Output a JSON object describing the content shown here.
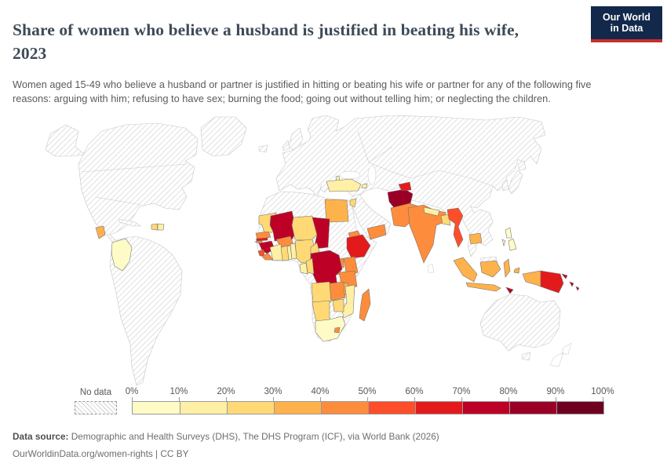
{
  "header": {
    "title": "Share of women who believe a husband is justified in beating his wife, 2023",
    "subtitle": "Women aged 15-49 who believe a husband or partner is justified in hitting or beating his wife or partner for any of the following five reasons: arguing with him; refusing to have sex; burning the food; going out without telling him; or neglecting the children.",
    "logo": {
      "line1": "Our World",
      "line2": "in Data",
      "bg_color": "#12294B",
      "accent_color": "#C4302B",
      "text_color": "#FFFFFF"
    }
  },
  "legend": {
    "no_data_label": "No data",
    "tick_labels": [
      "0%",
      "10%",
      "20%",
      "30%",
      "40%",
      "50%",
      "60%",
      "70%",
      "80%",
      "90%",
      "100%"
    ]
  },
  "footer": {
    "source_label": "Data source:",
    "source_text": " Demographic and Health Surveys (DHS), The DHS Program (ICF), via World Bank (2026)",
    "link_line": "OurWorldinData.org/women-rights | CC BY"
  },
  "chart_data": {
    "type": "choropleth",
    "title": "Share of women who believe a husband is justified in beating his wife, 2023",
    "unit": "%",
    "legend_position": "bottom",
    "bins": [
      {
        "range": "0-10%",
        "color": "#FFFBC7"
      },
      {
        "range": "10-20%",
        "color": "#FFF0A5"
      },
      {
        "range": "20-30%",
        "color": "#FED976"
      },
      {
        "range": "30-40%",
        "color": "#FEB24C"
      },
      {
        "range": "40-50%",
        "color": "#FD8D3C"
      },
      {
        "range": "50-60%",
        "color": "#FC4E2A"
      },
      {
        "range": "60-70%",
        "color": "#E31A1C"
      },
      {
        "range": "70-80%",
        "color": "#BD0026"
      },
      {
        "range": "80-90%",
        "color": "#9A0026"
      },
      {
        "range": "90-100%",
        "color": "#6E0020"
      }
    ],
    "no_data_style": "gray diagonal hatching",
    "no_data_regions": [
      "United States",
      "Canada",
      "Greenland",
      "Mexico",
      "Brazil",
      "Argentina",
      "Europe",
      "Russia",
      "China",
      "Kazakhstan",
      "Mongolia",
      "Saudi Arabia",
      "Iran",
      "Thailand",
      "Vietnam",
      "Japan",
      "Australia",
      "Morocco",
      "Algeria",
      "Libya",
      "Sudan",
      "Somalia",
      "Central African Republic",
      "Botswana",
      "Cuba"
    ],
    "countries": {
      "colombia": {
        "name": "Colombia",
        "range": "0-10%",
        "color": "#FFFBC7"
      },
      "guatemala": {
        "name": "Guatemala",
        "range": "30-40%",
        "color": "#FEB24C"
      },
      "haiti": {
        "name": "Haiti",
        "range": "20-30%",
        "color": "#FED976"
      },
      "dominican-republic": {
        "name": "Dominican Republic",
        "range": "10-20%",
        "color": "#FFF0A5"
      },
      "albania": {
        "name": "Albania",
        "range": "10-20%",
        "color": "#FFF0A5"
      },
      "turkey": {
        "name": "Turkey",
        "range": "10-20%",
        "color": "#FFF0A5"
      },
      "armenia": {
        "name": "Armenia",
        "range": "10-20%",
        "color": "#FFF0A5"
      },
      "jordan": {
        "name": "Jordan",
        "range": "20-30%",
        "color": "#FED976"
      },
      "egypt": {
        "name": "Egypt",
        "range": "30-40%",
        "color": "#FEB24C"
      },
      "mauritania": {
        "name": "Mauritania",
        "range": "20-30%",
        "color": "#FED976"
      },
      "senegal": {
        "name": "Senegal",
        "range": "40-50%",
        "color": "#FD8D3C"
      },
      "gambia": {
        "name": "Gambia",
        "range": "60-70%",
        "color": "#E31A1C"
      },
      "guinea-bissau": {
        "name": "Guinea-Bissau",
        "range": "40-50%",
        "color": "#FD8D3C"
      },
      "guinea": {
        "name": "Guinea",
        "range": "70-80%",
        "color": "#BD0026"
      },
      "sierra-leone": {
        "name": "Sierra Leone",
        "range": "50-60%",
        "color": "#FC4E2A"
      },
      "liberia": {
        "name": "Liberia",
        "range": "40-50%",
        "color": "#FD8D3C"
      },
      "mali": {
        "name": "Mali",
        "range": "70-80%",
        "color": "#BD0026"
      },
      "burkina-faso": {
        "name": "Burkina Faso",
        "range": "40-50%",
        "color": "#FD8D3C"
      },
      "cote-divoire": {
        "name": "Cote d'Ivoire",
        "range": "10-20%",
        "color": "#FFF0A5"
      },
      "ghana": {
        "name": "Ghana",
        "range": "20-30%",
        "color": "#FED976"
      },
      "togo": {
        "name": "Togo",
        "range": "10-20%",
        "color": "#FFF0A5"
      },
      "benin": {
        "name": "Benin",
        "range": "10-20%",
        "color": "#FFF0A5"
      },
      "niger": {
        "name": "Niger",
        "range": "20-30%",
        "color": "#FED976"
      },
      "nigeria": {
        "name": "Nigeria",
        "range": "20-30%",
        "color": "#FED976"
      },
      "chad": {
        "name": "Chad",
        "range": "70-80%",
        "color": "#BD0026"
      },
      "cameroon": {
        "name": "Cameroon",
        "range": "20-30%",
        "color": "#FED976"
      },
      "eritrea": {
        "name": "Eritrea",
        "range": "40-50%",
        "color": "#FD8D3C"
      },
      "ethiopia": {
        "name": "Ethiopia",
        "range": "60-70%",
        "color": "#E31A1C"
      },
      "uganda": {
        "name": "Uganda",
        "range": "40-50%",
        "color": "#FD8D3C"
      },
      "kenya": {
        "name": "Kenya",
        "range": "40-50%",
        "color": "#FD8D3C"
      },
      "rwanda": {
        "name": "Rwanda",
        "range": "40-50%",
        "color": "#FD8D3C"
      },
      "democratic-republic-of-congo": {
        "name": "Democratic Republic of Congo",
        "range": "70-80%",
        "color": "#BD0026"
      },
      "congo": {
        "name": "Congo",
        "range": "20-30%",
        "color": "#FED976"
      },
      "gabon": {
        "name": "Gabon",
        "range": "10-20%",
        "color": "#FFF0A5"
      },
      "tanzania": {
        "name": "Tanzania",
        "range": "40-50%",
        "color": "#FD8D3C"
      },
      "angola": {
        "name": "Angola",
        "range": "20-30%",
        "color": "#FED976"
      },
      "zambia": {
        "name": "Zambia",
        "range": "40-50%",
        "color": "#FD8D3C"
      },
      "malawi": {
        "name": "Malawi",
        "range": "30-40%",
        "color": "#FEB24C"
      },
      "mozambique": {
        "name": "Mozambique",
        "range": "10-20%",
        "color": "#FFF0A5"
      },
      "zimbabwe": {
        "name": "Zimbabwe",
        "range": "20-30%",
        "color": "#FED976"
      },
      "namibia": {
        "name": "Namibia",
        "range": "20-30%",
        "color": "#FED976"
      },
      "south-africa": {
        "name": "South Africa",
        "range": "0-10%",
        "color": "#FFFBC7"
      },
      "lesotho": {
        "name": "Lesotho",
        "range": "40-50%",
        "color": "#FD8D3C"
      },
      "madagascar": {
        "name": "Madagascar",
        "range": "40-50%",
        "color": "#FD8D3C"
      },
      "yemen": {
        "name": "Yemen",
        "range": "40-50%",
        "color": "#FD8D3C"
      },
      "afghanistan": {
        "name": "Afghanistan",
        "range": "80-90%",
        "color": "#9A0026"
      },
      "tajikistan": {
        "name": "Tajikistan",
        "range": "60-70%",
        "color": "#E31A1C"
      },
      "pakistan": {
        "name": "Pakistan",
        "range": "40-50%",
        "color": "#FD8D3C"
      },
      "india": {
        "name": "India",
        "range": "40-50%",
        "color": "#FD8D3C"
      },
      "nepal": {
        "name": "Nepal",
        "range": "10-20%",
        "color": "#FFF0A5"
      },
      "bangladesh": {
        "name": "Bangladesh",
        "range": "20-30%",
        "color": "#FED976"
      },
      "myanmar": {
        "name": "Myanmar",
        "range": "50-60%",
        "color": "#FC4E2A"
      },
      "cambodia": {
        "name": "Cambodia",
        "range": "30-40%",
        "color": "#FEB24C"
      },
      "philippines": {
        "name": "Philippines",
        "range": "0-10%",
        "color": "#FFFBC7"
      },
      "indonesia": {
        "name": "Indonesia",
        "range": "30-40%",
        "color": "#FEB24C"
      },
      "timor-leste": {
        "name": "Timor-Leste",
        "range": "70-80%",
        "color": "#BD0026"
      },
      "papua-new-guinea": {
        "name": "Papua New Guinea",
        "range": "60-70%",
        "color": "#E31A1C"
      },
      "solomon-islands": {
        "name": "Solomon Islands",
        "range": "70-80%",
        "color": "#BD0026"
      }
    }
  }
}
